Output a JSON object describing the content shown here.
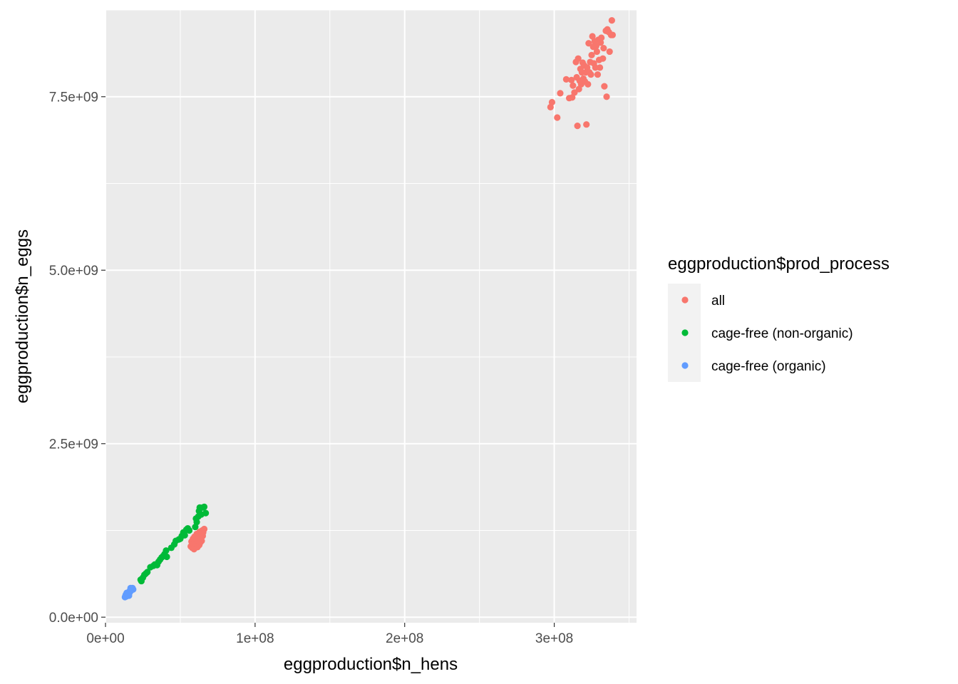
{
  "chart_data": {
    "type": "scatter",
    "xlabel": "eggproduction$n_hens",
    "ylabel": "eggproduction$n_eggs",
    "xlim": [
      0,
      355000000
    ],
    "ylim": [
      -80000000,
      8750000000
    ],
    "x_ticks": [
      0,
      100000000,
      200000000,
      300000000
    ],
    "x_tick_labels": [
      "0e+00",
      "1e+08",
      "2e+08",
      "3e+08"
    ],
    "y_ticks": [
      0,
      2500000000,
      5000000000,
      7500000000
    ],
    "y_tick_labels": [
      "0.0e+00",
      "2.5e+09",
      "5.0e+09",
      "7.5e+09"
    ],
    "grid": true,
    "legend": {
      "title": "eggproduction$prod_process",
      "position": "right"
    },
    "series": [
      {
        "name": "all",
        "color": "#F8766D",
        "points": [
          [
            297500000,
            7350000000
          ],
          [
            298500000,
            7420000000
          ],
          [
            302000000,
            7200000000
          ],
          [
            304000000,
            7550000000
          ],
          [
            308000000,
            7750000000
          ],
          [
            310000000,
            7480000000
          ],
          [
            311500000,
            7740000000
          ],
          [
            312500000,
            7660000000
          ],
          [
            313500000,
            7560000000
          ],
          [
            314500000,
            8000000000
          ],
          [
            315000000,
            7780000000
          ],
          [
            315500000,
            7080000000
          ],
          [
            316000000,
            8050000000
          ],
          [
            316500000,
            7610000000
          ],
          [
            317500000,
            7900000000
          ],
          [
            318000000,
            7680000000
          ],
          [
            318500000,
            7850000000
          ],
          [
            319000000,
            7990000000
          ],
          [
            319500000,
            7760000000
          ],
          [
            320000000,
            7950000000
          ],
          [
            320500000,
            7720000000
          ],
          [
            321000000,
            7850000000
          ],
          [
            321500000,
            7100000000
          ],
          [
            322000000,
            7920000000
          ],
          [
            322500000,
            7680000000
          ],
          [
            323000000,
            8270000000
          ],
          [
            323500000,
            7850000000
          ],
          [
            324000000,
            8000000000
          ],
          [
            324500000,
            7820000000
          ],
          [
            325000000,
            8100000000
          ],
          [
            325500000,
            8370000000
          ],
          [
            326000000,
            8220000000
          ],
          [
            326500000,
            7980000000
          ],
          [
            327000000,
            8300000000
          ],
          [
            328000000,
            8230000000
          ],
          [
            328500000,
            8150000000
          ],
          [
            329000000,
            7820000000
          ],
          [
            329500000,
            8320000000
          ],
          [
            330000000,
            8030000000
          ],
          [
            330500000,
            7920000000
          ],
          [
            331000000,
            8280000000
          ],
          [
            331500000,
            8350000000
          ],
          [
            333000000,
            8200000000
          ],
          [
            333500000,
            7650000000
          ],
          [
            334500000,
            8450000000
          ],
          [
            335000000,
            7500000000
          ],
          [
            335500000,
            8470000000
          ],
          [
            336500000,
            8430000000
          ],
          [
            337000000,
            8150000000
          ],
          [
            338000000,
            8390000000
          ],
          [
            338500000,
            8600000000
          ],
          [
            339000000,
            8390000000
          ],
          [
            332500000,
            8050000000
          ],
          [
            327500000,
            7920000000
          ],
          [
            317000000,
            7730000000
          ],
          [
            312000000,
            7490000000
          ],
          [
            57000000,
            1020000000
          ],
          [
            57500000,
            1090000000
          ],
          [
            58000000,
            1000000000
          ],
          [
            58500000,
            1130000000
          ],
          [
            59000000,
            1050000000
          ],
          [
            59500000,
            1160000000
          ],
          [
            60000000,
            1080000000
          ],
          [
            60300000,
            1020000000
          ],
          [
            60700000,
            1120000000
          ],
          [
            61000000,
            1200000000
          ],
          [
            61300000,
            1060000000
          ],
          [
            61700000,
            1140000000
          ],
          [
            62000000,
            1090000000
          ],
          [
            62300000,
            1180000000
          ],
          [
            62700000,
            1040000000
          ],
          [
            63000000,
            1230000000
          ],
          [
            63300000,
            1120000000
          ],
          [
            63700000,
            1160000000
          ],
          [
            64000000,
            1200000000
          ],
          [
            64300000,
            1100000000
          ],
          [
            64700000,
            1250000000
          ],
          [
            65000000,
            1170000000
          ],
          [
            65300000,
            1220000000
          ],
          [
            65600000,
            1260000000
          ],
          [
            66000000,
            1270000000
          ],
          [
            59200000,
            980000000
          ],
          [
            61500000,
            1010000000
          ],
          [
            63500000,
            1080000000
          ]
        ]
      },
      {
        "name": "cage-free (non-organic)",
        "color": "#00BA38",
        "points": [
          [
            23500000,
            540000000
          ],
          [
            24000000,
            520000000
          ],
          [
            25000000,
            570000000
          ],
          [
            26000000,
            610000000
          ],
          [
            27000000,
            630000000
          ],
          [
            28000000,
            650000000
          ],
          [
            30000000,
            720000000
          ],
          [
            32000000,
            740000000
          ],
          [
            33000000,
            760000000
          ],
          [
            34500000,
            750000000
          ],
          [
            35500000,
            800000000
          ],
          [
            36500000,
            830000000
          ],
          [
            37500000,
            860000000
          ],
          [
            38500000,
            880000000
          ],
          [
            39500000,
            910000000
          ],
          [
            40500000,
            960000000
          ],
          [
            41000000,
            870000000
          ],
          [
            44000000,
            1000000000
          ],
          [
            46000000,
            1050000000
          ],
          [
            47000000,
            1100000000
          ],
          [
            49000000,
            1120000000
          ],
          [
            50000000,
            1130000000
          ],
          [
            51000000,
            1170000000
          ],
          [
            52000000,
            1220000000
          ],
          [
            53000000,
            1180000000
          ],
          [
            54000000,
            1260000000
          ],
          [
            55000000,
            1280000000
          ],
          [
            56000000,
            1250000000
          ],
          [
            60000000,
            1300000000
          ],
          [
            61000000,
            1370000000
          ],
          [
            62000000,
            1450000000
          ],
          [
            62500000,
            1530000000
          ],
          [
            63000000,
            1580000000
          ],
          [
            64000000,
            1480000000
          ],
          [
            65000000,
            1580000000
          ],
          [
            66000000,
            1590000000
          ],
          [
            67000000,
            1500000000
          ],
          [
            60500000,
            1420000000
          ]
        ]
      },
      {
        "name": "cage-free (organic)",
        "color": "#619CFF",
        "points": [
          [
            13000000,
            290000000
          ],
          [
            13500000,
            320000000
          ],
          [
            14000000,
            300000000
          ],
          [
            14500000,
            340000000
          ],
          [
            15000000,
            330000000
          ],
          [
            15500000,
            360000000
          ],
          [
            16000000,
            350000000
          ],
          [
            16500000,
            390000000
          ],
          [
            17000000,
            380000000
          ],
          [
            17500000,
            410000000
          ],
          [
            18000000,
            420000000
          ],
          [
            18500000,
            400000000
          ],
          [
            14200000,
            350000000
          ],
          [
            15700000,
            310000000
          ],
          [
            16800000,
            420000000
          ]
        ]
      }
    ]
  }
}
